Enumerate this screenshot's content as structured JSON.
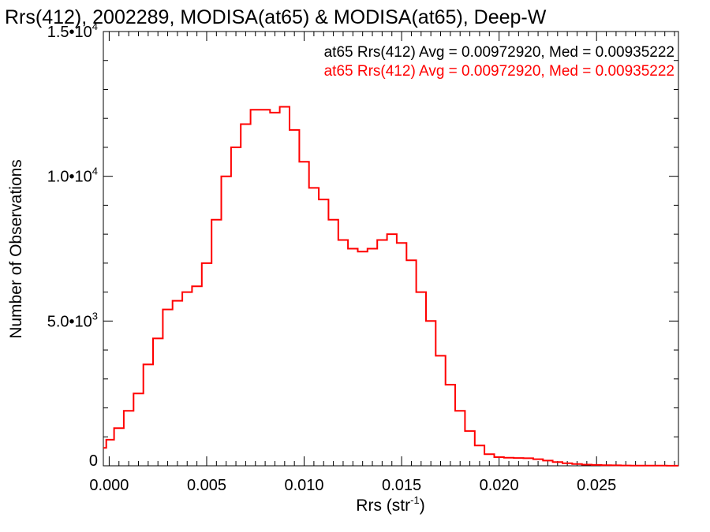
{
  "chart_data": {
    "type": "line",
    "title": "Rrs(412), 2002289, MODISA(at65) & MODISA(at65), Deep-W",
    "xlabel": "Rrs (str",
    "xlabel_sup": "-1",
    "xlabel_end": ")",
    "ylabel": "Number of Observations",
    "xlim": [
      -0.0003,
      0.0292
    ],
    "ylim": [
      0,
      15000
    ],
    "grid": false,
    "legend_position": "top-right",
    "x_ticks": [
      {
        "value": 0.0,
        "label": "0.000"
      },
      {
        "value": 0.005,
        "label": "0.005"
      },
      {
        "value": 0.01,
        "label": "0.010"
      },
      {
        "value": 0.015,
        "label": "0.015"
      },
      {
        "value": 0.02,
        "label": "0.020"
      },
      {
        "value": 0.025,
        "label": "0.025"
      }
    ],
    "y_ticks": [
      {
        "value": 0,
        "mant": "0",
        "exp": ""
      },
      {
        "value": 5000,
        "mant": "5.0•10",
        "exp": "3"
      },
      {
        "value": 10000,
        "mant": "1.0•10",
        "exp": "4"
      },
      {
        "value": 15000,
        "mant": "1.5•10",
        "exp": "4"
      }
    ],
    "annotations": [
      {
        "text": "at65 Rrs(412) Avg = 0.00972920, Med = 0.00935222",
        "color": "#000000"
      },
      {
        "text": "at65 Rrs(412) Avg = 0.00972920, Med = 0.00935222",
        "color": "#ff0000"
      }
    ],
    "series": [
      {
        "color": "#ff0000",
        "points": [
          [
            -0.0003,
            620
          ],
          [
            0.0,
            900
          ],
          [
            0.0005,
            1300
          ],
          [
            0.001,
            1900
          ],
          [
            0.0015,
            2500
          ],
          [
            0.002,
            3500
          ],
          [
            0.0025,
            4400
          ],
          [
            0.003,
            5400
          ],
          [
            0.0035,
            5700
          ],
          [
            0.004,
            6000
          ],
          [
            0.0045,
            6200
          ],
          [
            0.005,
            7000
          ],
          [
            0.0055,
            8500
          ],
          [
            0.006,
            10000
          ],
          [
            0.0065,
            11000
          ],
          [
            0.007,
            11800
          ],
          [
            0.0075,
            12300
          ],
          [
            0.008,
            12300
          ],
          [
            0.0085,
            12200
          ],
          [
            0.009,
            12400
          ],
          [
            0.0095,
            11600
          ],
          [
            0.01,
            10500
          ],
          [
            0.0105,
            9600
          ],
          [
            0.011,
            9200
          ],
          [
            0.0115,
            8500
          ],
          [
            0.012,
            7800
          ],
          [
            0.0125,
            7500
          ],
          [
            0.013,
            7400
          ],
          [
            0.0135,
            7500
          ],
          [
            0.014,
            7800
          ],
          [
            0.0145,
            8000
          ],
          [
            0.015,
            7700
          ],
          [
            0.0155,
            7100
          ],
          [
            0.016,
            6000
          ],
          [
            0.0165,
            5000
          ],
          [
            0.017,
            3800
          ],
          [
            0.0175,
            2800
          ],
          [
            0.018,
            1900
          ],
          [
            0.0185,
            1200
          ],
          [
            0.019,
            700
          ],
          [
            0.0195,
            400
          ],
          [
            0.02,
            300
          ],
          [
            0.0205,
            280
          ],
          [
            0.021,
            270
          ],
          [
            0.0215,
            260
          ],
          [
            0.022,
            230
          ],
          [
            0.0225,
            180
          ],
          [
            0.023,
            130
          ],
          [
            0.0235,
            90
          ],
          [
            0.024,
            60
          ],
          [
            0.0245,
            40
          ],
          [
            0.025,
            30
          ],
          [
            0.0255,
            20
          ],
          [
            0.026,
            15
          ],
          [
            0.0265,
            10
          ],
          [
            0.027,
            8
          ],
          [
            0.028,
            5
          ],
          [
            0.0292,
            3
          ]
        ]
      }
    ]
  }
}
